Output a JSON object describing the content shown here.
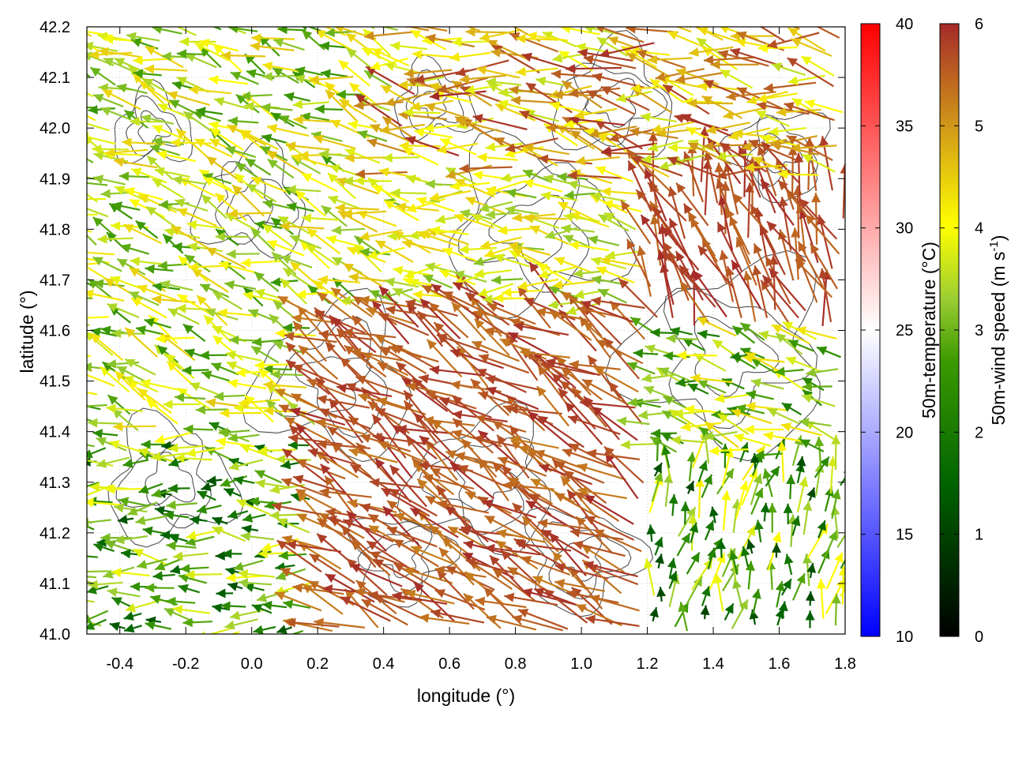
{
  "chart_data": {
    "type": "vector-field",
    "xlabel": "longitude (°)",
    "ylabel": "latitude (°)",
    "xlim": [
      -0.5,
      1.8
    ],
    "ylim": [
      41.0,
      42.2
    ],
    "x_ticks": [
      "-0.4",
      "-0.2",
      "0.0",
      "0.2",
      "0.4",
      "0.6",
      "0.8",
      "1.0",
      "1.2",
      "1.4",
      "1.6",
      "1.8"
    ],
    "y_ticks": [
      "41.0",
      "41.1",
      "41.2",
      "41.3",
      "41.4",
      "41.5",
      "41.6",
      "41.7",
      "41.8",
      "41.9",
      "42.0",
      "42.1",
      "42.2"
    ],
    "grid": true,
    "colorbars": [
      {
        "label": "50m-temperature (°C)",
        "range": [
          10,
          40
        ],
        "ticks": [
          "10",
          "15",
          "20",
          "25",
          "30",
          "35",
          "40"
        ],
        "colors": [
          "#0000ff",
          "#ffffff",
          "#ff0000"
        ]
      },
      {
        "label_main": "50m-wind speed (m s",
        "label_sup": "-1",
        "label_end": ")",
        "range": [
          0,
          6
        ],
        "ticks": [
          "0",
          "1",
          "2",
          "3",
          "4",
          "5",
          "6"
        ],
        "colors": [
          "#000000",
          "#006400",
          "#228b22",
          "#7fbf00",
          "#ffff00",
          "#daa520",
          "#b8860b",
          "#a52a2a"
        ]
      }
    ],
    "wind_regions": [
      {
        "lon": [
          -0.5,
          0.45
        ],
        "lat": [
          41.4,
          42.2
        ],
        "dir_deg": 160,
        "speed": [
          2.5,
          4.6
        ]
      },
      {
        "lon": [
          -0.5,
          0.3
        ],
        "lat": [
          41.0,
          41.4
        ],
        "dir_deg": 180,
        "speed": [
          1.2,
          4.0
        ]
      },
      {
        "lon": [
          0.2,
          1.2
        ],
        "lat": [
          41.0,
          41.65
        ],
        "dir_deg": 150,
        "speed": [
          5.2,
          6.0
        ]
      },
      {
        "lon": [
          1.2,
          1.8
        ],
        "lat": [
          41.6,
          42.0
        ],
        "dir_deg": 110,
        "speed": [
          5.4,
          6.0
        ]
      },
      {
        "lon": [
          0.45,
          1.8
        ],
        "lat": [
          41.9,
          42.2
        ],
        "dir_deg": 170,
        "speed": [
          3.5,
          6.0
        ]
      },
      {
        "lon": [
          1.2,
          1.8
        ],
        "lat": [
          41.0,
          41.35
        ],
        "dir_deg": 80,
        "speed": [
          1.0,
          4.2
        ]
      },
      {
        "lon": [
          0.45,
          1.2
        ],
        "lat": [
          41.65,
          41.9
        ],
        "dir_deg": 175,
        "speed": [
          3.0,
          4.5
        ]
      }
    ]
  }
}
